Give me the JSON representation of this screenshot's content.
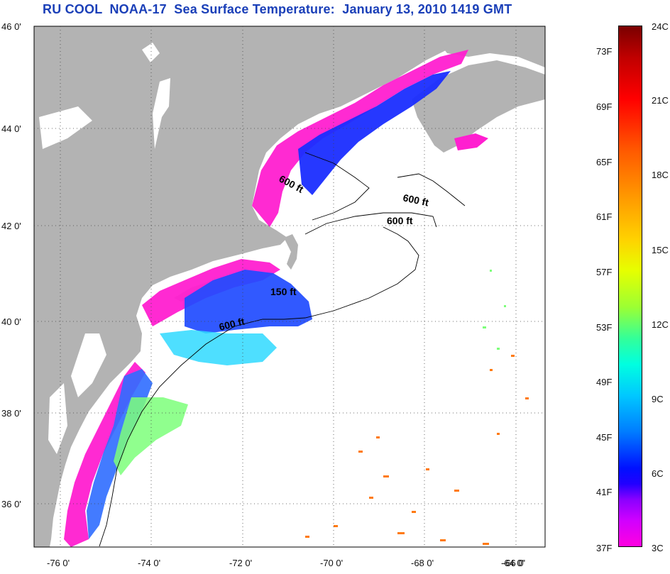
{
  "header": {
    "title": "RU COOL  NOAA-17  Sea Surface Temperature:  January 13, 2010 1419 GMT"
  },
  "map": {
    "lat_labels": [
      "46 0'",
      "44 0'",
      "42 0'",
      "40 0'",
      "38 0'",
      "36 0'"
    ],
    "lon_labels": [
      "-76 0'",
      "-74 0'",
      "-72 0'",
      "-70 0'",
      "-68 0'",
      "-66 0'",
      "-64 0'"
    ],
    "contour_labels": [
      "600 ft",
      "600 ft",
      "600 ft",
      "150 ft",
      "600 ft"
    ],
    "colors": {
      "land": "#b3b3b3",
      "ocean": "#ffffff",
      "cold_magenta": "#ff1fd0",
      "blue": "#1a2dff",
      "cyan": "#2fd9ff",
      "green": "#7dff7a",
      "orange": "#ff7a10"
    }
  },
  "colorbar": {
    "celsius": [
      "24C",
      "21C",
      "18C",
      "15C",
      "12C",
      "9C",
      "6C",
      "3C"
    ],
    "fahrenheit": [
      "73F",
      "69F",
      "65F",
      "61F",
      "57F",
      "53F",
      "49F",
      "45F",
      "41F",
      "37F"
    ]
  }
}
